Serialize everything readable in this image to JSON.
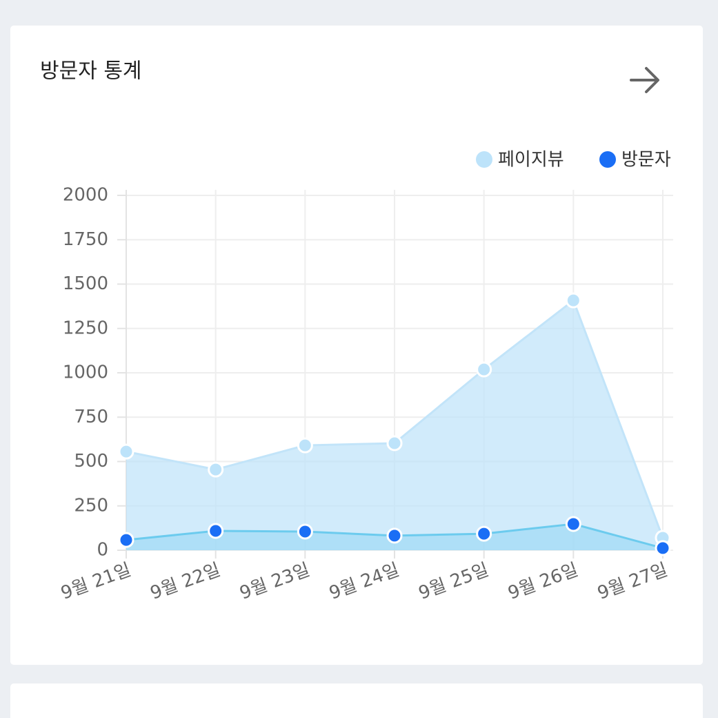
{
  "chart_data": {
    "type": "area",
    "title": "방문자 통계",
    "categories": [
      "9월 21일",
      "9월 22일",
      "9월 23일",
      "9월 24일",
      "9월 25일",
      "9월 26일",
      "9월 27일"
    ],
    "series": [
      {
        "name": "페이지뷰",
        "color": "#bde3fa",
        "values": [
          556,
          455,
          591,
          603,
          1019,
          1408,
          70
        ]
      },
      {
        "name": "방문자",
        "color": "#1a6ef5",
        "values": [
          58,
          109,
          105,
          82,
          93,
          148,
          12
        ]
      }
    ],
    "ylim": [
      0,
      2000
    ],
    "yticks": [
      0,
      250,
      500,
      750,
      1000,
      1250,
      1500,
      1750,
      2000
    ],
    "grid": true,
    "legend": "top-right"
  }
}
